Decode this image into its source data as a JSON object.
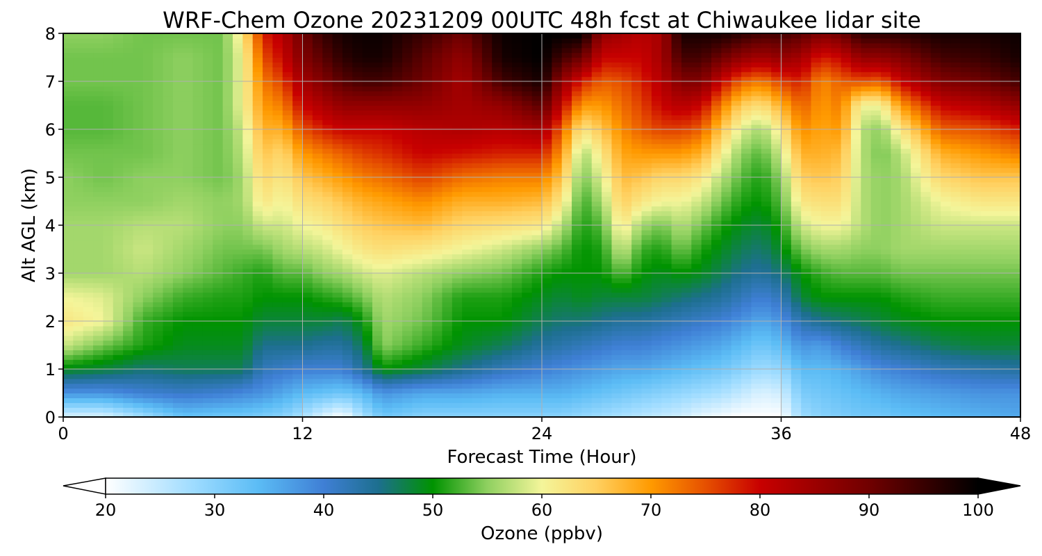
{
  "chart_data": {
    "type": "heatmap",
    "title": "WRF-Chem Ozone  20231209 00UTC 48h fcst at Chiwaukee lidar site",
    "xlabel": "Forecast Time (Hour)",
    "ylabel": "Alt AGL (km)",
    "xlim": [
      0,
      48
    ],
    "ylim": [
      0,
      8
    ],
    "x_ticks": [
      "0",
      "12",
      "24",
      "36",
      "48"
    ],
    "y_ticks": [
      "0",
      "1",
      "2",
      "3",
      "4",
      "5",
      "6",
      "7",
      "8"
    ],
    "grid": true,
    "colorbar": {
      "label": "Ozone  (ppbv)",
      "min": 20,
      "max": 100,
      "ticks": [
        "20",
        "30",
        "40",
        "50",
        "60",
        "70",
        "80",
        "90",
        "100"
      ],
      "extend": "both",
      "colormap": [
        [
          20,
          "#ffffff"
        ],
        [
          28,
          "#9fdcff"
        ],
        [
          34,
          "#5bbcf5"
        ],
        [
          40,
          "#3f7fd5"
        ],
        [
          45,
          "#1d6f8f"
        ],
        [
          50,
          "#009300"
        ],
        [
          55,
          "#8fd060"
        ],
        [
          60,
          "#f4f59a"
        ],
        [
          65,
          "#ffd060"
        ],
        [
          70,
          "#ff9a00"
        ],
        [
          75,
          "#e65000"
        ],
        [
          80,
          "#c80000"
        ],
        [
          90,
          "#700000"
        ],
        [
          100,
          "#000000"
        ]
      ]
    },
    "heights_km": [
      0,
      0.5,
      1,
      1.5,
      2,
      2.5,
      3,
      3.5,
      4,
      4.5,
      5,
      5.5,
      6,
      6.5,
      7,
      7.5,
      8
    ],
    "profiles": [
      {
        "t": 0,
        "o3": [
          23,
          38,
          49,
          58,
          62,
          60,
          56,
          56,
          56,
          55,
          55,
          54,
          53,
          53,
          54,
          54,
          55
        ]
      },
      {
        "t": 2,
        "o3": [
          23,
          38,
          48,
          54,
          60,
          59,
          56,
          56,
          56,
          55,
          54,
          54,
          53,
          53,
          54,
          54,
          55
        ]
      },
      {
        "t": 4,
        "o3": [
          28,
          40,
          46,
          51,
          52,
          55,
          57,
          58,
          57,
          55,
          55,
          54,
          54,
          54,
          54,
          54,
          54
        ]
      },
      {
        "t": 6,
        "o3": [
          33,
          41,
          47,
          49,
          50,
          52,
          55,
          56,
          57,
          56,
          55,
          55,
          55,
          55,
          55,
          55,
          54
        ]
      },
      {
        "t": 8,
        "o3": [
          32,
          40,
          47,
          49,
          50,
          51,
          53,
          54,
          55,
          55,
          54,
          54,
          54,
          54,
          54,
          54,
          54
        ]
      },
      {
        "t": 9,
        "o3": [
          32,
          39,
          47,
          49,
          50,
          51,
          52,
          54,
          55,
          56,
          56,
          57,
          58,
          60,
          60,
          60,
          62
        ]
      },
      {
        "t": 10,
        "o3": [
          31,
          38,
          42,
          45,
          48,
          50,
          51,
          54,
          58,
          62,
          64,
          66,
          68,
          70,
          72,
          75,
          78
        ]
      },
      {
        "t": 11,
        "o3": [
          30,
          36,
          41,
          45,
          48,
          50,
          53,
          56,
          58,
          60,
          62,
          64,
          68,
          72,
          76,
          80,
          82
        ]
      },
      {
        "t": 12,
        "o3": [
          27,
          34,
          40,
          45,
          48,
          50,
          53,
          57,
          60,
          63,
          66,
          70,
          75,
          80,
          84,
          88,
          90
        ]
      },
      {
        "t": 13,
        "o3": [
          23,
          33,
          40,
          44,
          48,
          51,
          55,
          58,
          61,
          64,
          68,
          72,
          78,
          83,
          88,
          92,
          95
        ]
      },
      {
        "t": 14,
        "o3": [
          20,
          32,
          40,
          44,
          47,
          52,
          56,
          60,
          63,
          66,
          70,
          74,
          80,
          86,
          92,
          96,
          98
        ]
      },
      {
        "t": 15,
        "o3": [
          27,
          34,
          44,
          47,
          50,
          54,
          58,
          62,
          65,
          68,
          72,
          76,
          80,
          86,
          94,
          98,
          99
        ]
      },
      {
        "t": 16,
        "o3": [
          32,
          38,
          50,
          55,
          56,
          57,
          59,
          63,
          66,
          69,
          73,
          77,
          80,
          86,
          94,
          98,
          99
        ]
      },
      {
        "t": 18,
        "o3": [
          30,
          36,
          48,
          52,
          54,
          55,
          57,
          62,
          67,
          71,
          76,
          80,
          82,
          86,
          90,
          92,
          95
        ]
      },
      {
        "t": 20,
        "o3": [
          30,
          36,
          45,
          49,
          50,
          51,
          55,
          60,
          64,
          68,
          73,
          79,
          83,
          84,
          84,
          86,
          90
        ]
      },
      {
        "t": 22,
        "o3": [
          30,
          35,
          42,
          47,
          50,
          51,
          54,
          58,
          63,
          68,
          72,
          78,
          82,
          86,
          94,
          98,
          99
        ]
      },
      {
        "t": 24,
        "o3": [
          30,
          35,
          40,
          44,
          47,
          49,
          51,
          55,
          62,
          67,
          72,
          78,
          84,
          92,
          98,
          100,
          100
        ]
      },
      {
        "t": 25,
        "o3": [
          30,
          35,
          39,
          43,
          46,
          48,
          50,
          53,
          57,
          62,
          66,
          70,
          74,
          80,
          86,
          94,
          100
        ]
      },
      {
        "t": 26,
        "o3": [
          29,
          34,
          38,
          42,
          46,
          49,
          50,
          50,
          51,
          52,
          54,
          56,
          62,
          70,
          78,
          90,
          100
        ]
      },
      {
        "t": 27,
        "o3": [
          28,
          33,
          37,
          41,
          45,
          48,
          50,
          51,
          53,
          56,
          59,
          62,
          66,
          70,
          74,
          80,
          86
        ]
      },
      {
        "t": 28,
        "o3": [
          27,
          32,
          36,
          40,
          44,
          48,
          53,
          58,
          62,
          65,
          67,
          69,
          71,
          73,
          75,
          80,
          84
        ]
      },
      {
        "t": 29,
        "o3": [
          26,
          31,
          36,
          40,
          44,
          48,
          50,
          52,
          56,
          62,
          66,
          70,
          74,
          76,
          78,
          80,
          82
        ]
      },
      {
        "t": 30,
        "o3": [
          25,
          30,
          35,
          39,
          43,
          47,
          49,
          51,
          54,
          60,
          64,
          70,
          76,
          80,
          82,
          84,
          84
        ]
      },
      {
        "t": 31,
        "o3": [
          24,
          29,
          34,
          38,
          42,
          46,
          50,
          54,
          57,
          60,
          64,
          70,
          76,
          82,
          88,
          94,
          98
        ]
      },
      {
        "t": 32,
        "o3": [
          22,
          28,
          33,
          37,
          41,
          45,
          49,
          51,
          54,
          58,
          62,
          68,
          74,
          80,
          88,
          94,
          98
        ]
      },
      {
        "t": 33,
        "o3": [
          21,
          27,
          32,
          36,
          40,
          44,
          47,
          49,
          51,
          54,
          57,
          61,
          66,
          72,
          80,
          90,
          98
        ]
      },
      {
        "t": 34,
        "o3": [
          20,
          25,
          30,
          34,
          38,
          42,
          45,
          47,
          49,
          51,
          53,
          55,
          59,
          65,
          74,
          86,
          96
        ]
      },
      {
        "t": 35,
        "o3": [
          20,
          23,
          28,
          32,
          36,
          40,
          44,
          46,
          48,
          50,
          51,
          53,
          56,
          63,
          72,
          84,
          94
        ]
      },
      {
        "t": 36,
        "o3": [
          20,
          24,
          29,
          34,
          38,
          42,
          46,
          49,
          51,
          53,
          55,
          58,
          62,
          68,
          76,
          86,
          94
        ]
      },
      {
        "t": 37,
        "o3": [
          28,
          31,
          34,
          38,
          43,
          48,
          50,
          54,
          58,
          62,
          65,
          68,
          71,
          74,
          78,
          84,
          92
        ]
      },
      {
        "t": 38,
        "o3": [
          30,
          32,
          34,
          37,
          45,
          50,
          52,
          56,
          60,
          63,
          66,
          68,
          69,
          70,
          71,
          78,
          88
        ]
      },
      {
        "t": 39,
        "o3": [
          31,
          33,
          35,
          40,
          46,
          50,
          53,
          56,
          60,
          63,
          65,
          67,
          70,
          72,
          74,
          80,
          90
        ]
      },
      {
        "t": 40,
        "o3": [
          32,
          34,
          37,
          42,
          47,
          50,
          53,
          55,
          57,
          57,
          57,
          57,
          57,
          60,
          75,
          86,
          96
        ]
      },
      {
        "t": 41,
        "o3": [
          32,
          35,
          39,
          44,
          48,
          50,
          53,
          55,
          55,
          55,
          55,
          54,
          55,
          60,
          74,
          86,
          96
        ]
      },
      {
        "t": 42,
        "o3": [
          33,
          36,
          40,
          45,
          49,
          51,
          54,
          56,
          56,
          56,
          56,
          57,
          62,
          70,
          80,
          88,
          96
        ]
      },
      {
        "t": 44,
        "o3": [
          34,
          37,
          42,
          47,
          50,
          52,
          54,
          56,
          58,
          60,
          64,
          68,
          74,
          80,
          88,
          94,
          98
        ]
      },
      {
        "t": 46,
        "o3": [
          35,
          38,
          43,
          48,
          50,
          52,
          54,
          56,
          58,
          62,
          66,
          70,
          75,
          82,
          90,
          95,
          98
        ]
      },
      {
        "t": 48,
        "o3": [
          36,
          38,
          44,
          48,
          50,
          52,
          54,
          56,
          58,
          62,
          66,
          72,
          78,
          86,
          94,
          98,
          99
        ]
      }
    ]
  }
}
